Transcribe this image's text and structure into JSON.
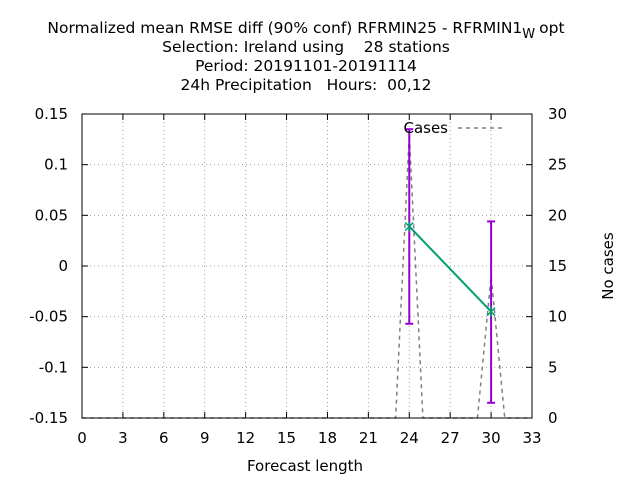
{
  "chart_data": {
    "type": "line",
    "title": {
      "line1_main": "Normalized mean RMSE diff (90% conf) RFRMIN25 - RFRMIN1",
      "line1_sub": "W",
      "line1_tail": "opt",
      "line2": "Selection: Ireland using    28 stations",
      "line3": "Period: 20191101-20191114",
      "line4": "24h Precipitation   Hours:  00,12"
    },
    "xlabel": "Forecast length",
    "ylabel": "",
    "y2label": "No cases",
    "xlim": [
      0,
      33
    ],
    "ylim": [
      -0.15,
      0.15
    ],
    "y2lim": [
      0,
      30
    ],
    "xticks": [
      "0",
      "3",
      "6",
      "9",
      "12",
      "15",
      "18",
      "21",
      "24",
      "27",
      "30",
      "33"
    ],
    "yticks": [
      "-0.15",
      "-0.1",
      "-0.05",
      "0",
      "0.05",
      "0.1",
      "0.15"
    ],
    "y2ticks": [
      "0",
      "5",
      "10",
      "15",
      "20",
      "25",
      "30"
    ],
    "grid": true,
    "legend": {
      "position": "top-right",
      "entries": [
        "Cases"
      ]
    },
    "series": [
      {
        "kind": "mean_diff",
        "color": "#009e73",
        "x": [
          24,
          30
        ],
        "y": [
          0.039,
          -0.045
        ],
        "err_low": [
          -0.057,
          -0.135
        ],
        "err_high": [
          0.135,
          0.044
        ],
        "err_color": "#9400d3"
      },
      {
        "name": "Cases",
        "kind": "cases",
        "axis": "y2",
        "color": "#808080",
        "x": [
          0,
          23,
          24,
          25,
          29,
          30,
          31,
          33
        ],
        "y": [
          0,
          0,
          28,
          0,
          0,
          14,
          0,
          0
        ]
      }
    ]
  }
}
